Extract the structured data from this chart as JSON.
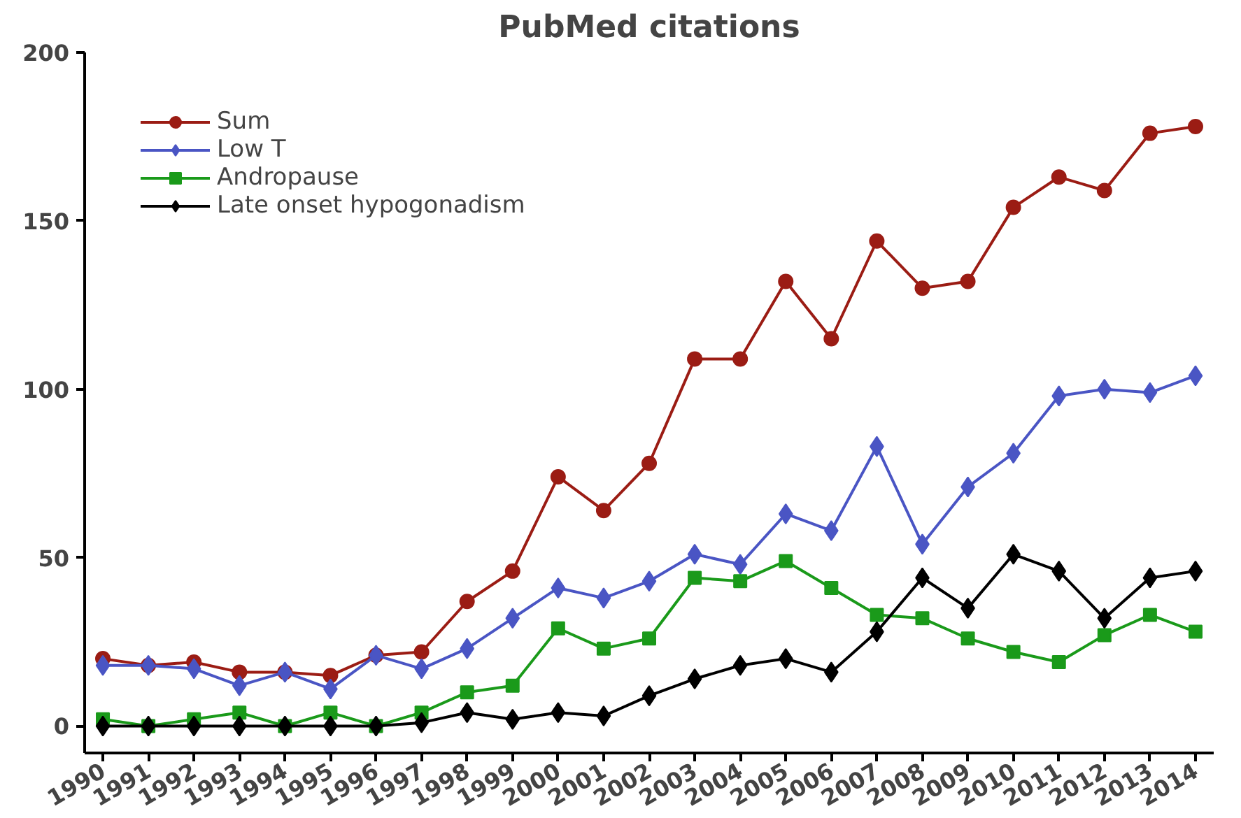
{
  "chart_data": {
    "type": "line",
    "title": "PubMed citations",
    "categories": [
      "1990",
      "1991",
      "1992",
      "1993",
      "1994",
      "1995",
      "1996",
      "1997",
      "1998",
      "1999",
      "2000",
      "2001",
      "2002",
      "2003",
      "2004",
      "2005",
      "2006",
      "2007",
      "2008",
      "2009",
      "2010",
      "2011",
      "2012",
      "2013",
      "2014"
    ],
    "series": [
      {
        "name": "Sum",
        "color": "#9b1c14",
        "marker": "circle",
        "values": [
          20,
          18,
          19,
          16,
          16,
          15,
          21,
          22,
          37,
          46,
          74,
          64,
          78,
          109,
          109,
          132,
          115,
          144,
          130,
          132,
          154,
          163,
          159,
          176,
          178
        ]
      },
      {
        "name": "Low T",
        "color": "#4a55c4",
        "marker": "diamond",
        "values": [
          18,
          18,
          17,
          12,
          16,
          11,
          21,
          17,
          23,
          32,
          41,
          38,
          43,
          51,
          48,
          63,
          58,
          83,
          54,
          71,
          81,
          98,
          100,
          99,
          104
        ]
      },
      {
        "name": "Andropause",
        "color": "#1a9a1a",
        "marker": "square",
        "values": [
          2,
          0,
          2,
          4,
          0,
          4,
          0,
          4,
          10,
          12,
          29,
          23,
          26,
          44,
          43,
          49,
          41,
          33,
          32,
          26,
          22,
          19,
          27,
          33,
          28
        ]
      },
      {
        "name": "Late onset hypogonadism",
        "color": "#000000",
        "marker": "diamond",
        "values": [
          0,
          0,
          0,
          0,
          0,
          0,
          0,
          1,
          4,
          2,
          4,
          3,
          9,
          14,
          18,
          20,
          16,
          28,
          44,
          35,
          51,
          46,
          32,
          44,
          46
        ]
      }
    ],
    "ylim": [
      -8,
      200
    ],
    "yticks": [
      0,
      50,
      100,
      150,
      200
    ],
    "grid": false,
    "legend": "top left",
    "line_style": "solid"
  }
}
